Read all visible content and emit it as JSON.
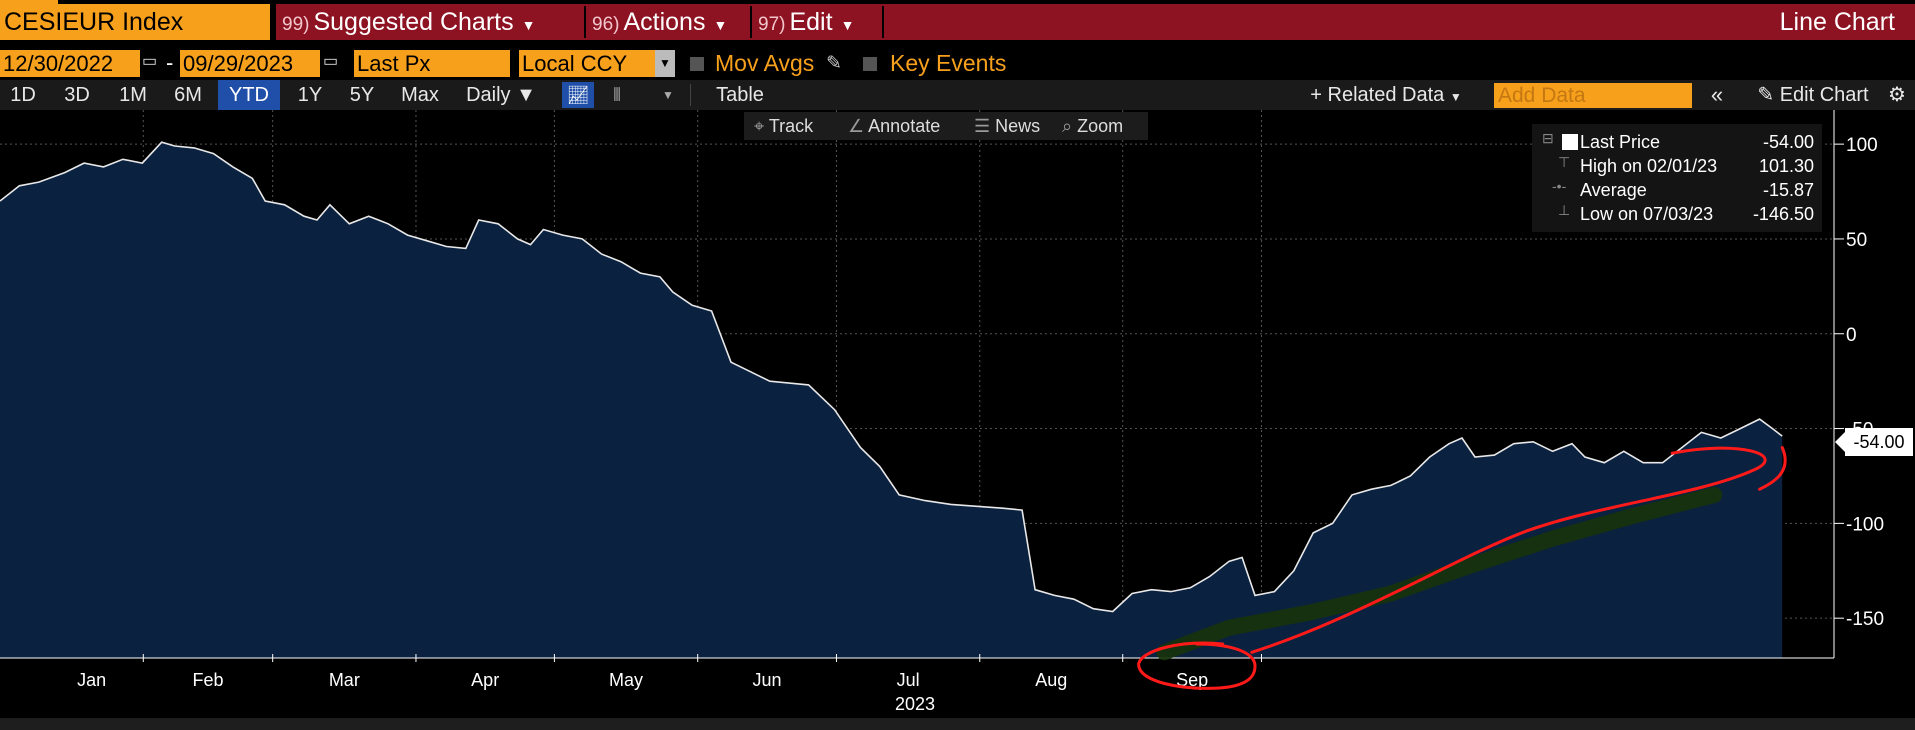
{
  "header": {
    "ticker": "CESIEUR Index",
    "menus": [
      {
        "num": "99)",
        "label": "Suggested Charts"
      },
      {
        "num": "96)",
        "label": "Actions"
      },
      {
        "num": "97)",
        "label": "Edit"
      }
    ],
    "chart_type": "Line Chart"
  },
  "options": {
    "start_date": "12/30/2022",
    "end_date": "09/29/2023",
    "field": "Last Px",
    "currency": "Local CCY",
    "mov_avgs": "Mov Avgs",
    "key_events": "Key Events"
  },
  "periods": [
    "1D",
    "3D",
    "1M",
    "6M",
    "YTD",
    "1Y",
    "5Y",
    "Max"
  ],
  "selected_period": "YTD",
  "frequency": "Daily ▼",
  "table_label": "Table",
  "related_data": "+ Related Data",
  "add_data_placeholder": "Add Data",
  "edit_chart": "Edit Chart",
  "tools": [
    "Track",
    "Annotate",
    "News",
    "Zoom"
  ],
  "legend": {
    "last_label": "Last Price",
    "last_value": "-54.00",
    "high_label": "High on 02/01/23",
    "high_value": "101.30",
    "avg_label": "Average",
    "avg_value": "-15.87",
    "low_label": "Low on 07/03/23",
    "low_value": "-146.50"
  },
  "price_tag": "-54.00",
  "chart_data": {
    "type": "area",
    "x_unit": "week",
    "x_labels": [
      "Jan",
      "Feb",
      "Mar",
      "Apr",
      "May",
      "Jun",
      "Jul",
      "Aug",
      "Sep"
    ],
    "x_year": "2023",
    "yticks": [
      100,
      50,
      0,
      -50,
      -100,
      -150
    ],
    "ylim": [
      -171,
      118
    ],
    "grid": true,
    "colors": {
      "line": "#e8e8e8",
      "fill": "#0b2140",
      "grid": "#555555",
      "annotation": "#ff1a1a",
      "highlight": "#16330a"
    },
    "series": [
      {
        "points": [
          [
            0,
            70
          ],
          [
            0.6,
            78
          ],
          [
            1.2,
            80
          ],
          [
            2,
            85
          ],
          [
            2.6,
            90
          ],
          [
            3.2,
            88
          ],
          [
            3.8,
            92
          ],
          [
            4.4,
            90
          ],
          [
            5,
            101
          ],
          [
            5.4,
            99
          ],
          [
            6,
            98
          ],
          [
            6.6,
            95
          ],
          [
            7.2,
            88
          ],
          [
            7.8,
            82
          ],
          [
            8.2,
            70
          ],
          [
            8.8,
            68
          ],
          [
            9.4,
            62
          ],
          [
            9.8,
            60
          ],
          [
            10.2,
            68
          ],
          [
            10.8,
            58
          ],
          [
            11.4,
            62
          ],
          [
            12,
            58
          ],
          [
            12.6,
            52
          ],
          [
            13.2,
            49
          ],
          [
            13.8,
            46
          ],
          [
            14.4,
            45
          ],
          [
            14.8,
            60
          ],
          [
            15.4,
            58
          ],
          [
            16,
            50
          ],
          [
            16.4,
            47
          ],
          [
            16.8,
            55
          ],
          [
            17.4,
            52
          ],
          [
            18,
            50
          ],
          [
            18.6,
            42
          ],
          [
            19.2,
            38
          ],
          [
            19.8,
            32
          ],
          [
            20.4,
            30
          ],
          [
            20.8,
            22
          ],
          [
            21.4,
            15
          ],
          [
            22,
            12
          ],
          [
            22.6,
            -15
          ],
          [
            23.2,
            -20
          ],
          [
            23.8,
            -25
          ],
          [
            24.4,
            -26
          ],
          [
            25,
            -27
          ],
          [
            25.8,
            -40
          ],
          [
            26.6,
            -60
          ],
          [
            27.2,
            -70
          ],
          [
            27.8,
            -85
          ],
          [
            28.6,
            -88
          ],
          [
            29.4,
            -90
          ],
          [
            30.2,
            -91
          ],
          [
            31,
            -92
          ],
          [
            31.6,
            -93
          ],
          [
            32,
            -135
          ],
          [
            32.6,
            -138
          ],
          [
            33.2,
            -140
          ],
          [
            33.8,
            -145
          ],
          [
            34.4,
            -146.5
          ],
          [
            35,
            -137
          ],
          [
            35.6,
            -135
          ],
          [
            36.2,
            -136
          ],
          [
            36.8,
            -134
          ],
          [
            37.4,
            -128
          ],
          [
            38,
            -120
          ],
          [
            38.4,
            -118
          ],
          [
            38.8,
            -138
          ],
          [
            39.4,
            -136
          ],
          [
            40,
            -125
          ],
          [
            40.6,
            -105
          ],
          [
            41.2,
            -100
          ],
          [
            41.8,
            -85
          ],
          [
            42.4,
            -82
          ],
          [
            43,
            -80
          ],
          [
            43.6,
            -75
          ],
          [
            44.2,
            -65
          ],
          [
            44.8,
            -58
          ],
          [
            45.2,
            -55
          ],
          [
            45.6,
            -65
          ],
          [
            46.2,
            -64
          ],
          [
            46.8,
            -58
          ],
          [
            47.4,
            -57
          ],
          [
            48,
            -62
          ],
          [
            48.6,
            -58
          ],
          [
            49,
            -65
          ],
          [
            49.6,
            -68
          ],
          [
            50.2,
            -62
          ],
          [
            50.8,
            -68
          ],
          [
            51.4,
            -68
          ],
          [
            52,
            -60
          ],
          [
            52.6,
            -52
          ],
          [
            53.2,
            -55
          ],
          [
            53.8,
            -50
          ],
          [
            54.4,
            -45
          ],
          [
            54.8,
            -50
          ],
          [
            55.1,
            -54
          ]
        ]
      }
    ]
  }
}
